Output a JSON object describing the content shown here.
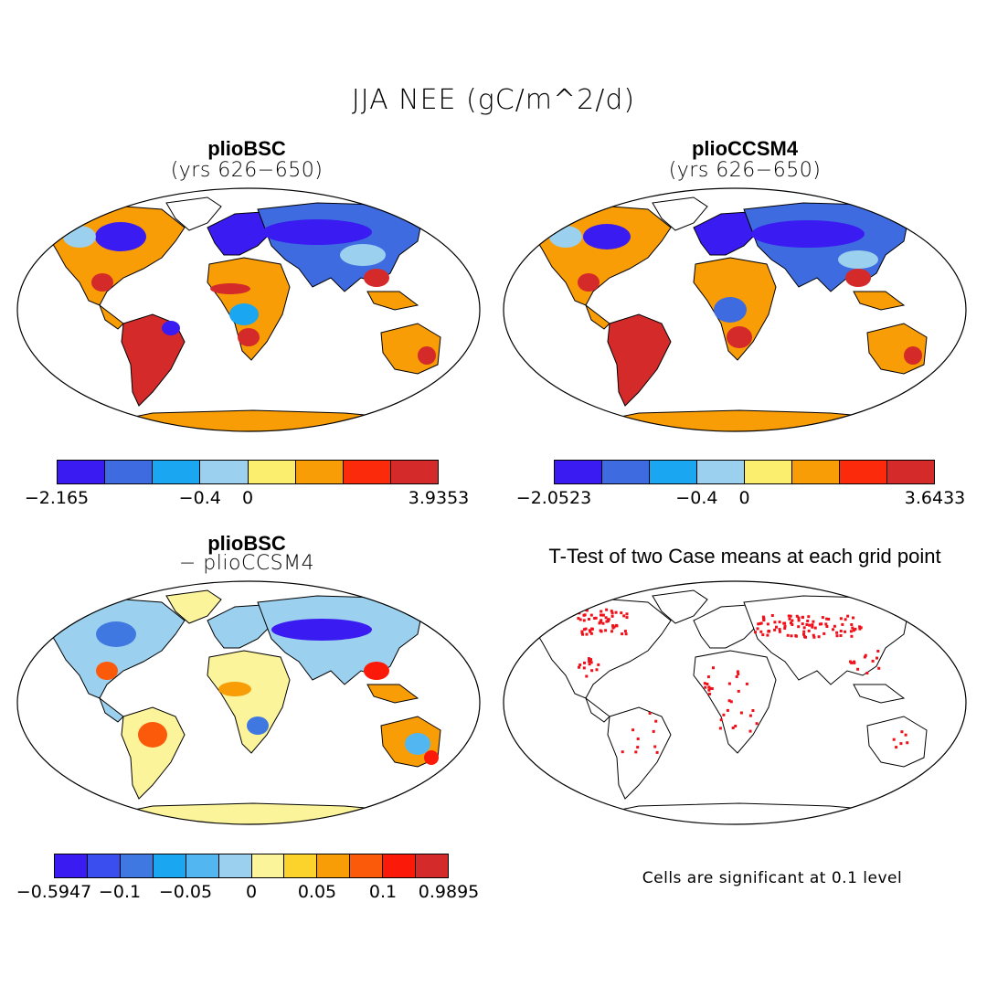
{
  "figure": {
    "title": "JJA NEE (gC/m^2/d)"
  },
  "panels": [
    {
      "id": "top-left",
      "title": "plioBSC",
      "subtitle": "(yrs 626−650)",
      "colorbar": {
        "colors": [
          "#3a1cf2",
          "#3f6be0",
          "#1aa6f0",
          "#9bd0ee",
          "#fbee6e",
          "#f99d07",
          "#fb2a0a",
          "#d42a2a"
        ],
        "labels": [
          "−2.165",
          "−0.4",
          "0",
          "3.9353"
        ],
        "label_positions": [
          0,
          0.375,
          0.5,
          1.0
        ]
      }
    },
    {
      "id": "top-right",
      "title": "plioCCSM4",
      "subtitle": "(yrs 626−650)",
      "colorbar": {
        "colors": [
          "#3a1cf2",
          "#3f6be0",
          "#1aa6f0",
          "#9bd0ee",
          "#fbee6e",
          "#f99d07",
          "#fb2a0a",
          "#d42a2a"
        ],
        "labels": [
          "−2.0523",
          "−0.4",
          "0",
          "3.6433"
        ],
        "label_positions": [
          0,
          0.375,
          0.5,
          1.0
        ]
      }
    },
    {
      "id": "bottom-left",
      "title": "plioBSC",
      "subtitle": "− plioCCSM4",
      "colorbar": {
        "colors": [
          "#3a1cf2",
          "#3a4ef0",
          "#3f78e0",
          "#1aa6f0",
          "#52b6f0",
          "#9bd0ee",
          "#fcf49a",
          "#fbd32a",
          "#f99d07",
          "#fb5a0a",
          "#fb1a0a",
          "#d42a2a"
        ],
        "labels": [
          "−0.5947",
          "−0.1",
          "−0.05",
          "0",
          "0.05",
          "0.1",
          "0.9895"
        ],
        "label_positions": [
          0,
          0.1667,
          0.3333,
          0.5,
          0.6667,
          0.8333,
          1.0
        ]
      }
    },
    {
      "id": "bottom-right",
      "title": "T-Test of two Case means at each grid point",
      "note": "Cells are significant at 0.1 level"
    }
  ]
}
